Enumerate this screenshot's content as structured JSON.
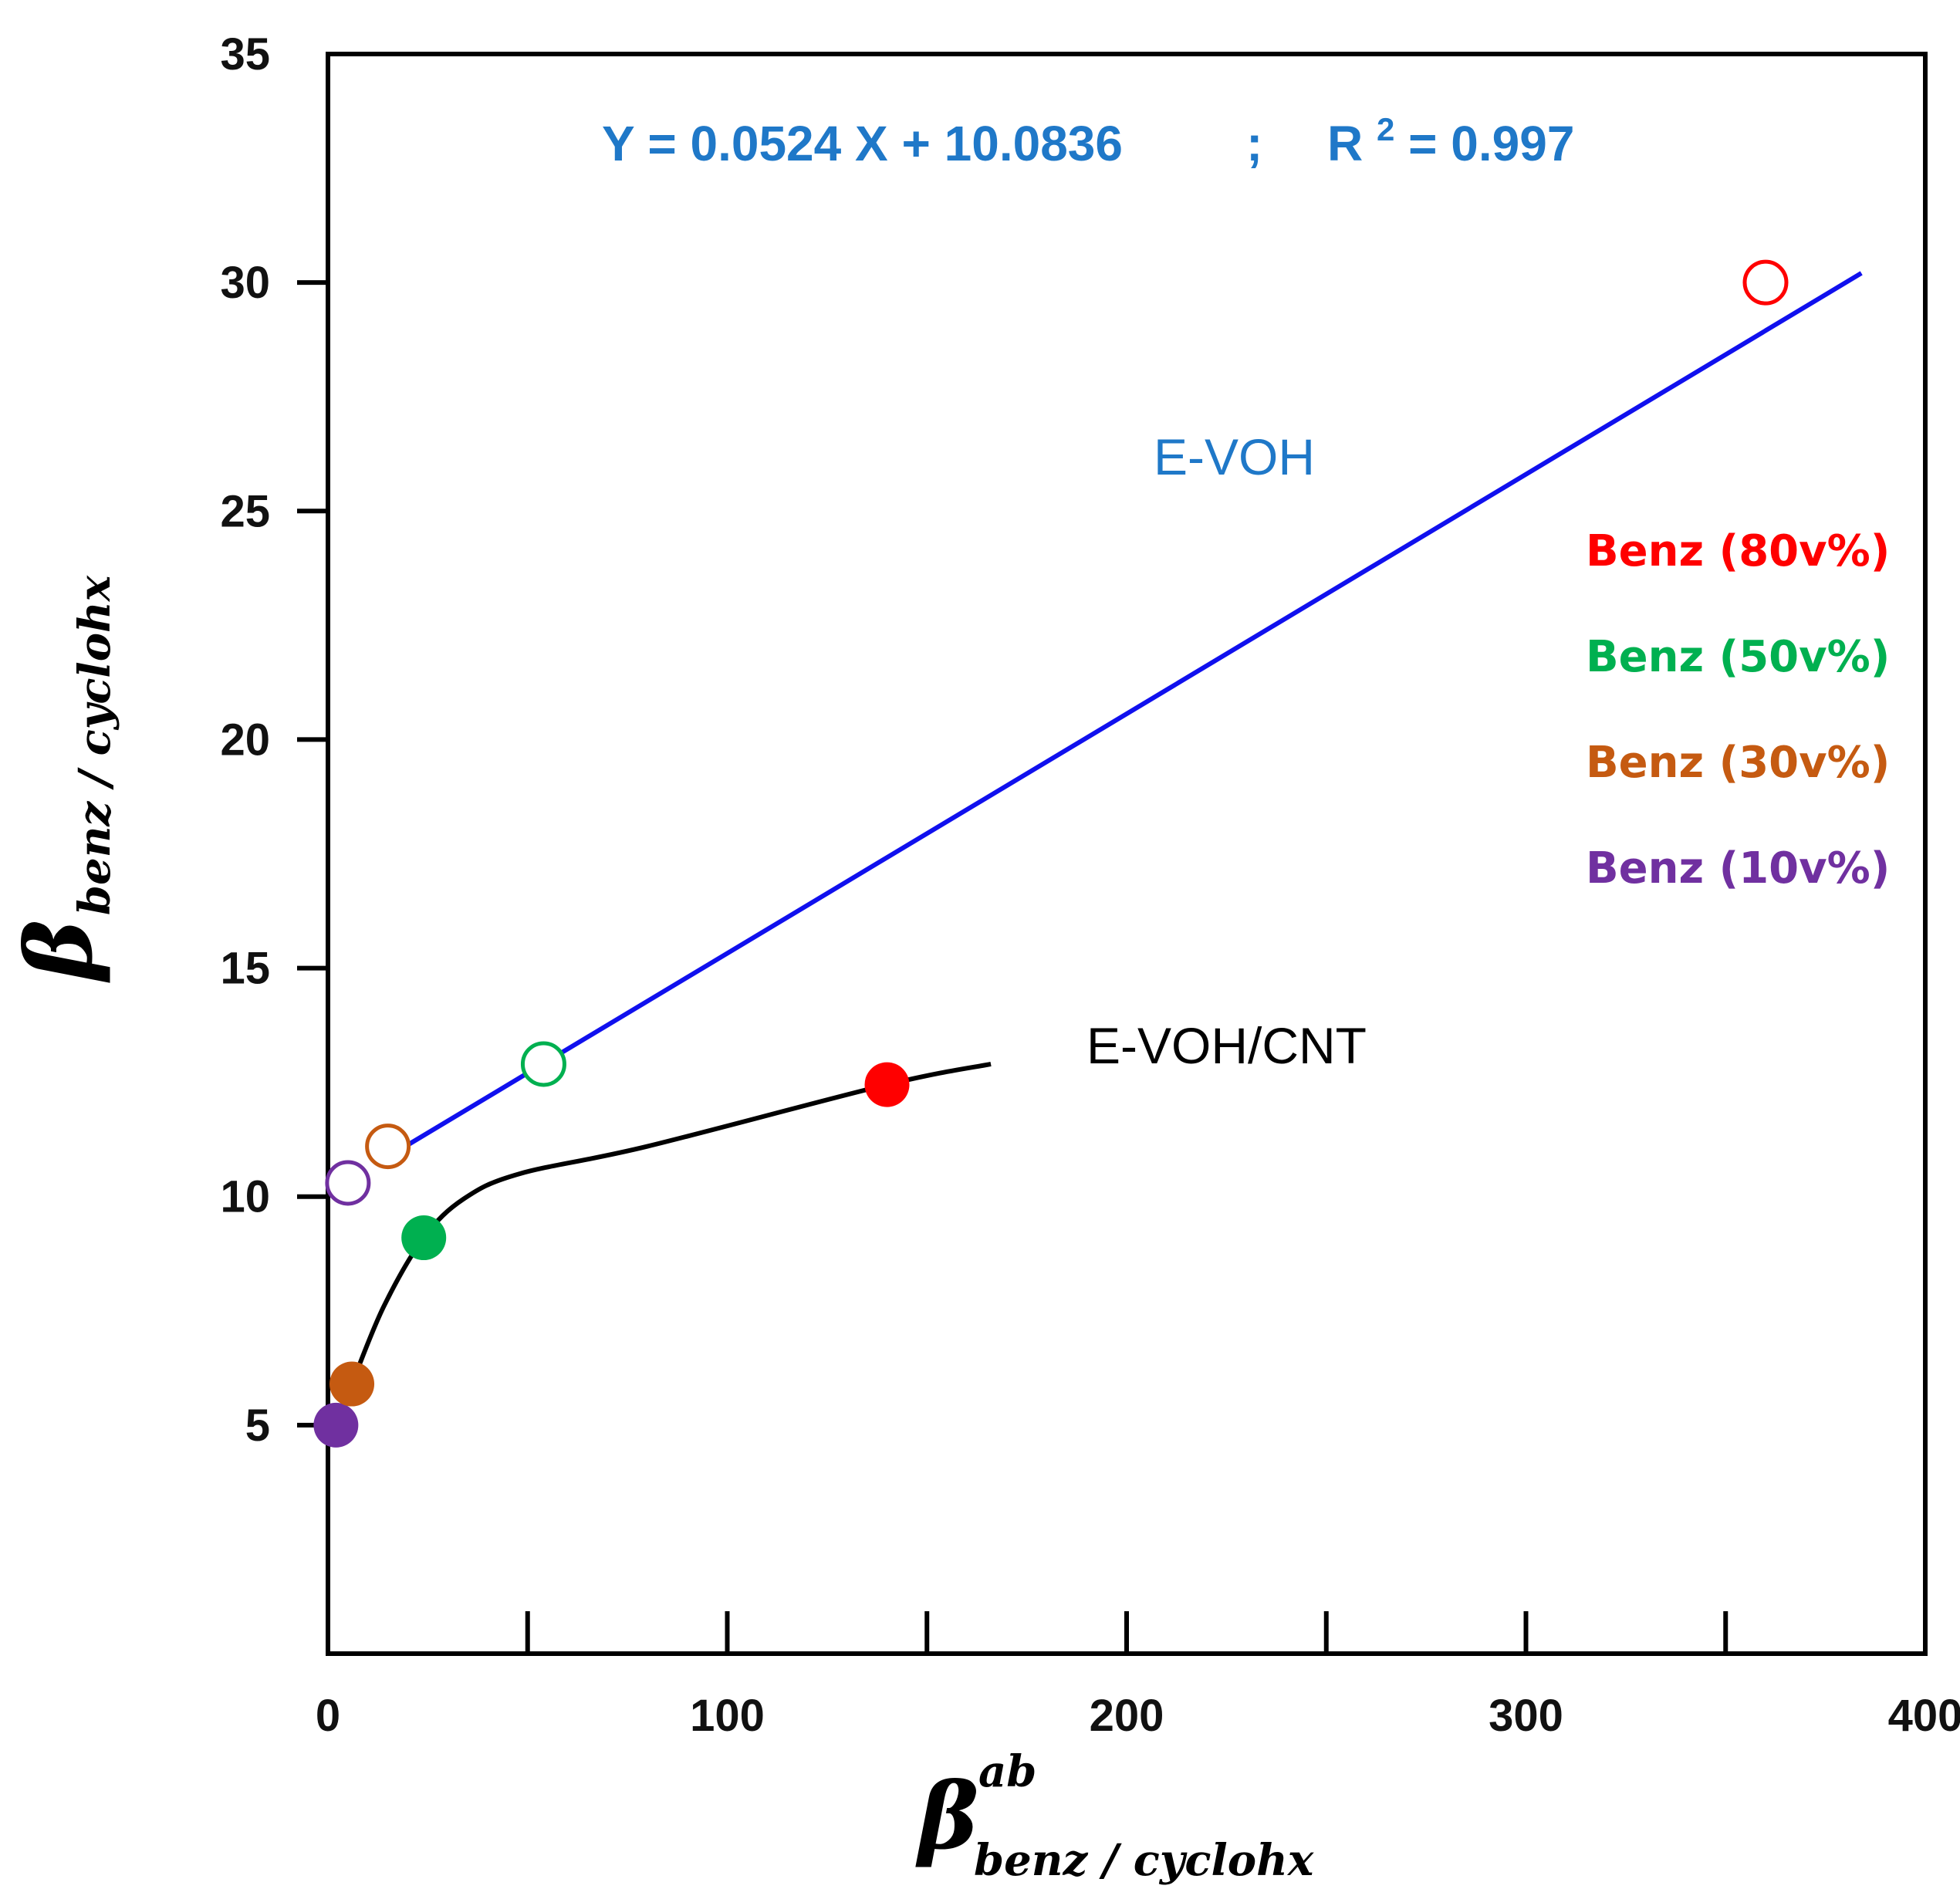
{
  "chart_data": {
    "type": "scatter",
    "xlim": [
      0,
      400
    ],
    "ylim": [
      0,
      35
    ],
    "x_ticks": [
      0,
      100,
      200,
      300,
      400
    ],
    "x_minor_ticks": [
      50,
      150,
      250,
      350
    ],
    "y_ticks": [
      5,
      10,
      15,
      20,
      25,
      30,
      35
    ],
    "xlabel": {
      "symbol": "β",
      "superscript": "ab",
      "subscript": "benz / cyclohx"
    },
    "ylabel": {
      "symbol": "β",
      "subscript": "benz / cyclohx"
    },
    "equation": {
      "fit": "Y = 0.0524 X + 10.0836",
      "separator": ";",
      "r2_prefix": "R",
      "r2_power": "2",
      "r2_value": " = 0.997"
    },
    "series": [
      {
        "name": "E-VOH",
        "label": "E-VOH",
        "line_color": "#1010ee",
        "label_color": "#1f78c8",
        "marker": "open",
        "fit_line": {
          "x_start": 17,
          "x_end": 384
        },
        "points": [
          {
            "x": 5,
            "y": 10.3,
            "color": "#7030a0",
            "legend": "Benz (10v%)"
          },
          {
            "x": 15,
            "y": 11.1,
            "color": "#c55a11",
            "legend": "Benz (30v%)"
          },
          {
            "x": 54,
            "y": 12.9,
            "color": "#00b050",
            "legend": "Benz (50v%)"
          },
          {
            "x": 360,
            "y": 30.0,
            "color": "#ff0000",
            "legend": "Benz (80v%)"
          }
        ]
      },
      {
        "name": "E-VOH/CNT",
        "label": "E-VOH/CNT",
        "line_color": "#000000",
        "label_color": "#000000",
        "marker": "filled",
        "curve": [
          [
            2,
            5.0
          ],
          [
            6,
            5.9
          ],
          [
            14,
            7.6
          ],
          [
            24,
            9.1
          ],
          [
            34,
            9.95
          ],
          [
            48,
            10.5
          ],
          [
            80,
            11.1
          ],
          [
            140,
            12.45
          ],
          [
            166,
            12.9
          ]
        ],
        "points": [
          {
            "x": 2,
            "y": 5.0,
            "color": "#7030a0",
            "legend": "Benz (10v%)"
          },
          {
            "x": 6,
            "y": 5.9,
            "color": "#c55a11",
            "legend": "Benz (30v%)"
          },
          {
            "x": 24,
            "y": 9.1,
            "color": "#00b050",
            "legend": "Benz (50v%)"
          },
          {
            "x": 140,
            "y": 12.45,
            "color": "#ff0000",
            "legend": "Benz (80v%)"
          }
        ]
      }
    ],
    "legend": {
      "placement": "right",
      "entries": [
        {
          "label": "Benz (80v%)",
          "color": "#ff0000"
        },
        {
          "label": "Benz (50v%)",
          "color": "#00b050"
        },
        {
          "label": "Benz (30v%)",
          "color": "#c55a11"
        },
        {
          "label": "Benz (10v%)",
          "color": "#7030a0"
        }
      ]
    },
    "colors": {
      "axis": "#000000",
      "equation": "#1f78c8"
    }
  }
}
